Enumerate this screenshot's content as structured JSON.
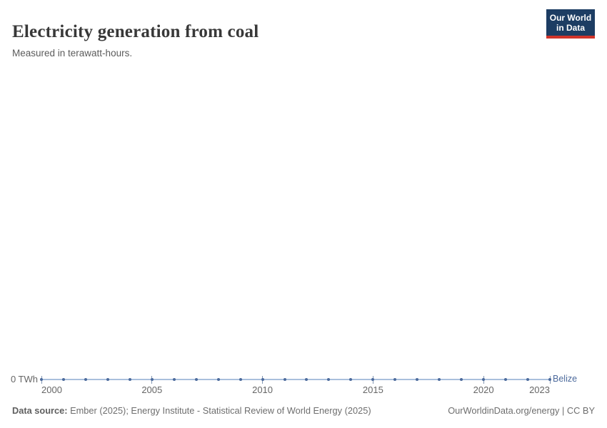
{
  "header": {
    "title": "Electricity generation from coal",
    "subtitle": "Measured in terawatt-hours.",
    "logo": {
      "line1": "Our World",
      "line2": "in Data"
    }
  },
  "chart": {
    "y_axis_label": "0 TWh",
    "entity_label": "Belize",
    "colors": {
      "line": "#a9bfdc",
      "marker": "#4c6a9c",
      "entity_label": "#4c6a9c",
      "tick": "#8296b2",
      "axis_text": "#666666"
    }
  },
  "chart_data": {
    "type": "line",
    "title": "Electricity generation from coal",
    "subtitle": "Measured in terawatt-hours.",
    "xlabel": "",
    "ylabel": "TWh",
    "xlim": [
      2000,
      2023
    ],
    "ylim": [
      0,
      0
    ],
    "grid": false,
    "legend": "end-of-line label",
    "x_ticks": [
      2000,
      2005,
      2010,
      2015,
      2020,
      2023
    ],
    "y_ticks": [
      "0 TWh"
    ],
    "series": [
      {
        "name": "Belize",
        "x": [
          2000,
          2001,
          2002,
          2003,
          2004,
          2005,
          2006,
          2007,
          2008,
          2009,
          2010,
          2011,
          2012,
          2013,
          2014,
          2015,
          2016,
          2017,
          2018,
          2019,
          2020,
          2021,
          2022,
          2023
        ],
        "values": [
          0,
          0,
          0,
          0,
          0,
          0,
          0,
          0,
          0,
          0,
          0,
          0,
          0,
          0,
          0,
          0,
          0,
          0,
          0,
          0,
          0,
          0,
          0,
          0
        ]
      }
    ]
  },
  "footer": {
    "source_label": "Data source:",
    "source_text": " Ember (2025); Energy Institute - Statistical Review of World Energy (2025)",
    "rights": "OurWorldinData.org/energy | CC BY"
  }
}
